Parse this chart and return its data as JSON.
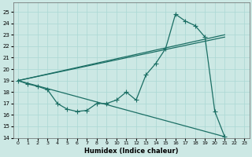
{
  "xlabel": "Humidex (Indice chaleur)",
  "bg_color": "#cce8e4",
  "line_color": "#1a6e64",
  "grid_color": "#aad8d4",
  "xlim": [
    -0.5,
    23.5
  ],
  "ylim": [
    14,
    25.8
  ],
  "yticks": [
    14,
    15,
    16,
    17,
    18,
    19,
    20,
    21,
    22,
    23,
    24,
    25
  ],
  "xtick_labels": [
    "0",
    "1",
    "2",
    "3",
    "4",
    "5",
    "6",
    "7",
    "8",
    "9",
    "10",
    "11",
    "12",
    "13",
    "14",
    "15",
    "16",
    "17",
    "18",
    "19",
    "20",
    "21",
    "22",
    "23"
  ],
  "curve_x": [
    0,
    1,
    2,
    3,
    4,
    5,
    6,
    7,
    8,
    9,
    10,
    11,
    12,
    13,
    14,
    15,
    16,
    17,
    18,
    19,
    20,
    21
  ],
  "curve_y": [
    19.0,
    18.7,
    18.5,
    18.2,
    17.0,
    16.5,
    16.3,
    16.4,
    17.0,
    17.0,
    17.3,
    18.0,
    17.3,
    19.5,
    20.5,
    21.8,
    24.8,
    24.2,
    23.8,
    22.8,
    16.3,
    14.1
  ],
  "line1_x": [
    0,
    21
  ],
  "line1_y": [
    19.0,
    23.0
  ],
  "line2_x": [
    0,
    21
  ],
  "line2_y": [
    19.0,
    22.8
  ],
  "line3_x": [
    0,
    21
  ],
  "line3_y": [
    19.0,
    14.1
  ],
  "marker": "+",
  "markersize": 4,
  "linewidth": 0.9
}
